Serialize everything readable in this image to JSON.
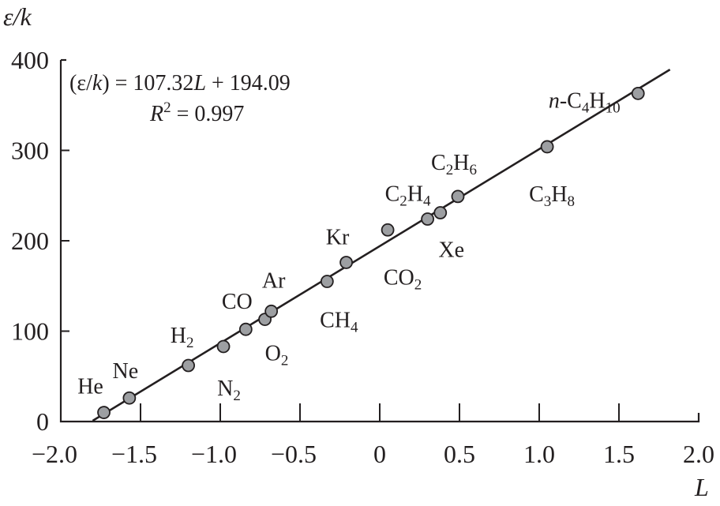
{
  "chart_data": {
    "type": "scatter",
    "title": "",
    "xlabel": "L",
    "ylabel": "ε/k",
    "xlim": [
      -2.0,
      2.0
    ],
    "ylim": [
      0,
      400
    ],
    "xticks": [
      "−2.0",
      "−1.5",
      "−1.0",
      "−0.5",
      "0",
      "0.5",
      "1.0",
      "1.5",
      "2.0"
    ],
    "xtick_values": [
      -2.0,
      -1.5,
      -1.0,
      -0.5,
      0,
      0.5,
      1.0,
      1.5,
      2.0
    ],
    "yticks": [
      "0",
      "100",
      "200",
      "300",
      "400"
    ],
    "ytick_values": [
      0,
      100,
      200,
      300,
      400
    ],
    "grid": false,
    "points": [
      {
        "label": "He",
        "x": -1.73,
        "y": 10
      },
      {
        "label": "Ne",
        "x": -1.57,
        "y": 26
      },
      {
        "label": "H2",
        "x": -1.2,
        "y": 62
      },
      {
        "label": "N2",
        "x": -0.98,
        "y": 83
      },
      {
        "label": "CO",
        "x": -0.84,
        "y": 102
      },
      {
        "label": "O2",
        "x": -0.72,
        "y": 113
      },
      {
        "label": "Ar",
        "x": -0.68,
        "y": 122
      },
      {
        "label": "CH4",
        "x": -0.33,
        "y": 155
      },
      {
        "label": "Kr",
        "x": -0.21,
        "y": 176
      },
      {
        "label": "CO2",
        "x": 0.05,
        "y": 212
      },
      {
        "label": "C2H4",
        "x": 0.3,
        "y": 224
      },
      {
        "label": "Xe",
        "x": 0.38,
        "y": 231
      },
      {
        "label": "C2H6",
        "x": 0.49,
        "y": 249
      },
      {
        "label": "C3H8",
        "x": 1.05,
        "y": 304
      },
      {
        "label": "n-C4H10",
        "x": 1.62,
        "y": 363
      }
    ],
    "fit": {
      "slope": 107.32,
      "intercept": 194.09,
      "x_range": [
        -1.8,
        1.82
      ]
    },
    "annotations": {
      "equation": "(ε/k) = 107.32L + 194.09",
      "r_squared": "R2 = 0.997"
    },
    "colors": {
      "marker_fill": "#9d9fa2",
      "ink": "#231f20"
    }
  }
}
